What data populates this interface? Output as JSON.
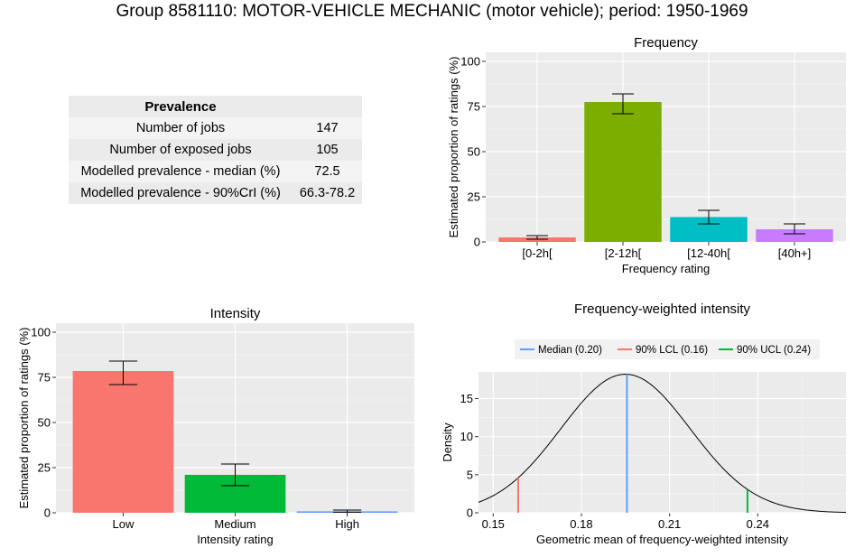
{
  "page_title": "Group 8581110: MOTOR-VEHICLE MECHANIC (motor vehicle); period: 1950-1969",
  "prevalence_table": {
    "header": "Prevalence",
    "rows": [
      {
        "label": "Number of jobs",
        "value": "147"
      },
      {
        "label": "Number of exposed jobs",
        "value": "105"
      },
      {
        "label": "Modelled prevalence - median (%)",
        "value": "72.5"
      },
      {
        "label": "Modelled prevalence - 90%CrI (%)",
        "value": "66.3-78.2"
      }
    ]
  },
  "chart_data": [
    {
      "id": "frequency",
      "type": "bar",
      "title": "Frequency",
      "xlabel": "Frequency rating",
      "ylabel": "Estimated proportion of ratings (%)",
      "categories": [
        "[0-2h[",
        "[2-12h[",
        "[12-40h[",
        "[40h+]"
      ],
      "values": [
        2.5,
        77.5,
        13.8,
        7.0
      ],
      "error_low": [
        1.5,
        71.0,
        10.0,
        4.5
      ],
      "error_high": [
        3.5,
        82.0,
        17.5,
        10.0
      ],
      "colors": [
        "#f8766d",
        "#7cae00",
        "#00bfc4",
        "#c77cff"
      ],
      "ylim": [
        0,
        100
      ],
      "yticks": [
        0,
        25,
        50,
        75,
        100
      ],
      "grid": true
    },
    {
      "id": "intensity",
      "type": "bar",
      "title": "Intensity",
      "xlabel": "Intensity rating",
      "ylabel": "Estimated proportion of ratings (%)",
      "categories": [
        "Low",
        "Medium",
        "High"
      ],
      "values": [
        78.5,
        21.0,
        0.8
      ],
      "error_low": [
        71.0,
        15.0,
        0.3
      ],
      "error_high": [
        84.0,
        27.0,
        1.5
      ],
      "colors": [
        "#f8766d",
        "#00ba38",
        "#619cff"
      ],
      "ylim": [
        0,
        100
      ],
      "yticks": [
        0,
        25,
        50,
        75,
        100
      ],
      "grid": true
    },
    {
      "id": "fwi",
      "type": "line",
      "title": "Frequency-weighted intensity",
      "xlabel": "Geometric mean of frequency-weighted intensity",
      "ylabel": "Density",
      "xlim": [
        0.145,
        0.27
      ],
      "ylim": [
        0,
        18.5
      ],
      "xticks": [
        0.15,
        0.18,
        0.21,
        0.24
      ],
      "xtick_labels": [
        "0.15",
        "0.18",
        "0.21",
        "0.24"
      ],
      "yticks": [
        0,
        5,
        10,
        15
      ],
      "density": {
        "mean": 0.195,
        "sd": 0.022,
        "peak": 18.2
      },
      "vlines": [
        {
          "label": "Median (0.20)",
          "x": 0.1955,
          "color": "#619cff"
        },
        {
          "label": "90% LCL (0.16)",
          "x": 0.1585,
          "color": "#f8766d"
        },
        {
          "label": "90% UCL (0.24)",
          "x": 0.2365,
          "color": "#00ba38"
        }
      ],
      "legend_position": "top",
      "grid": true
    }
  ]
}
